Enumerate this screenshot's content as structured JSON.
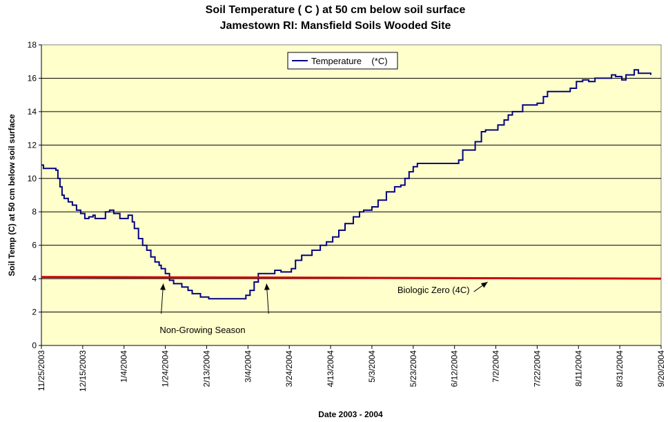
{
  "chart_data": {
    "type": "line",
    "title": "Soil Temperature ( C ) at 50 cm below soil surface",
    "subtitle": "Jamestown RI: Mansfield Soils Wooded Site",
    "xlabel": "Date 2003 - 2004",
    "ylabel": "Soil Temp (C) at 50 cm below soil surface",
    "ylim": [
      0,
      18
    ],
    "yticks": [
      "0",
      "2",
      "4",
      "6",
      "8",
      "10",
      "12",
      "14",
      "16",
      "18"
    ],
    "xlim": [
      "2003-11-25",
      "2004-09-20"
    ],
    "xtick_labels": [
      "11/25/2003",
      "12/15/2003",
      "1/4/2004",
      "1/24/2004",
      "2/13/2004",
      "3/4/2004",
      "3/24/2004",
      "4/13/2004",
      "5/3/2004",
      "5/23/2004",
      "6/12/2004",
      "7/2/2004",
      "7/22/2004",
      "8/11/2004",
      "8/31/2004",
      "9/20/2004"
    ],
    "grid": "horizontal",
    "plot_background": "#FFFFCC",
    "legend": {
      "placement": "top-center",
      "entries": [
        "Temperature    (*C)"
      ]
    },
    "series": [
      {
        "name": "Temperature    (*C)",
        "color": "#000080",
        "x": [
          "2003-11-25",
          "2003-11-26",
          "2003-11-27",
          "2003-12-02",
          "2003-12-03",
          "2003-12-04",
          "2003-12-05",
          "2003-12-06",
          "2003-12-08",
          "2003-12-10",
          "2003-12-12",
          "2003-12-14",
          "2003-12-16",
          "2003-12-18",
          "2003-12-20",
          "2003-12-21",
          "2003-12-23",
          "2003-12-26",
          "2003-12-28",
          "2003-12-30",
          "2004-01-02",
          "2004-01-04",
          "2004-01-06",
          "2004-01-08",
          "2004-01-09",
          "2004-01-11",
          "2004-01-13",
          "2004-01-15",
          "2004-01-17",
          "2004-01-19",
          "2004-01-21",
          "2004-01-22",
          "2004-01-24",
          "2004-01-26",
          "2004-01-28",
          "2004-02-01",
          "2004-02-04",
          "2004-02-06",
          "2004-02-10",
          "2004-02-14",
          "2004-02-20",
          "2004-02-26",
          "2004-03-01",
          "2004-03-03",
          "2004-03-05",
          "2004-03-07",
          "2004-03-09",
          "2004-03-17",
          "2004-03-20",
          "2004-03-25",
          "2004-03-27",
          "2004-03-30",
          "2004-04-04",
          "2004-04-08",
          "2004-04-11",
          "2004-04-14",
          "2004-04-17",
          "2004-04-20",
          "2004-04-24",
          "2004-04-27",
          "2004-04-29",
          "2004-05-03",
          "2004-05-06",
          "2004-05-10",
          "2004-05-14",
          "2004-05-17",
          "2004-05-19",
          "2004-05-21",
          "2004-05-23",
          "2004-05-25",
          "2004-06-03",
          "2004-06-12",
          "2004-06-14",
          "2004-06-16",
          "2004-06-19",
          "2004-06-22",
          "2004-06-25",
          "2004-06-27",
          "2004-07-03",
          "2004-07-06",
          "2004-07-08",
          "2004-07-10",
          "2004-07-15",
          "2004-07-22",
          "2004-07-25",
          "2004-07-27",
          "2004-08-01",
          "2004-08-04",
          "2004-08-07",
          "2004-08-10",
          "2004-08-13",
          "2004-08-16",
          "2004-08-19",
          "2004-08-25",
          "2004-08-27",
          "2004-08-29",
          "2004-09-01",
          "2004-09-03",
          "2004-09-07",
          "2004-09-09",
          "2004-09-11",
          "2004-09-15"
        ],
        "y": [
          10.8,
          10.6,
          10.6,
          10.5,
          10.0,
          9.5,
          9.0,
          8.8,
          8.6,
          8.4,
          8.1,
          7.9,
          7.6,
          7.7,
          7.8,
          7.6,
          7.6,
          8.0,
          8.1,
          7.9,
          7.6,
          7.6,
          7.8,
          7.4,
          7.0,
          6.4,
          6.0,
          5.7,
          5.3,
          5.0,
          4.8,
          4.6,
          4.3,
          3.9,
          3.7,
          3.5,
          3.3,
          3.1,
          2.9,
          2.8,
          2.8,
          2.8,
          2.8,
          3.0,
          3.3,
          3.8,
          4.3,
          4.5,
          4.4,
          4.6,
          5.1,
          5.4,
          5.7,
          6.0,
          6.2,
          6.5,
          6.9,
          7.3,
          7.7,
          8.0,
          8.1,
          8.3,
          8.7,
          9.2,
          9.5,
          9.6,
          10.0,
          10.4,
          10.7,
          10.9,
          10.9,
          10.9,
          11.1,
          11.7,
          11.7,
          12.2,
          12.8,
          12.9,
          13.2,
          13.5,
          13.8,
          14.0,
          14.4,
          14.5,
          14.9,
          15.2,
          15.2,
          15.2,
          15.4,
          15.8,
          15.9,
          15.8,
          16.0,
          16.0,
          16.2,
          16.1,
          15.9,
          16.2,
          16.5,
          16.3,
          16.3,
          16.2
        ]
      },
      {
        "name": "Biologic Zero (4C)",
        "color": "#CC0000",
        "x": [
          "2003-11-25",
          "2004-09-20"
        ],
        "y": [
          4.1,
          4.0
        ]
      }
    ],
    "annotations": [
      {
        "text": "Biologic Zero (4C)",
        "anchor_x": "2004-06-22",
        "anchor_y": 3.3,
        "arrow_to_x": "2004-06-28",
        "arrow_to_y": 3.8
      },
      {
        "text": "Non-Growing Season",
        "label_x": "2004-02-11",
        "label_y": 0.9,
        "arrows": [
          {
            "from_x": "2004-01-22",
            "from_y": 1.9,
            "to_x": "2004-01-23",
            "to_y": 3.7
          },
          {
            "from_x": "2004-03-14",
            "from_y": 1.9,
            "to_x": "2004-03-13",
            "to_y": 3.7
          }
        ]
      }
    ]
  }
}
